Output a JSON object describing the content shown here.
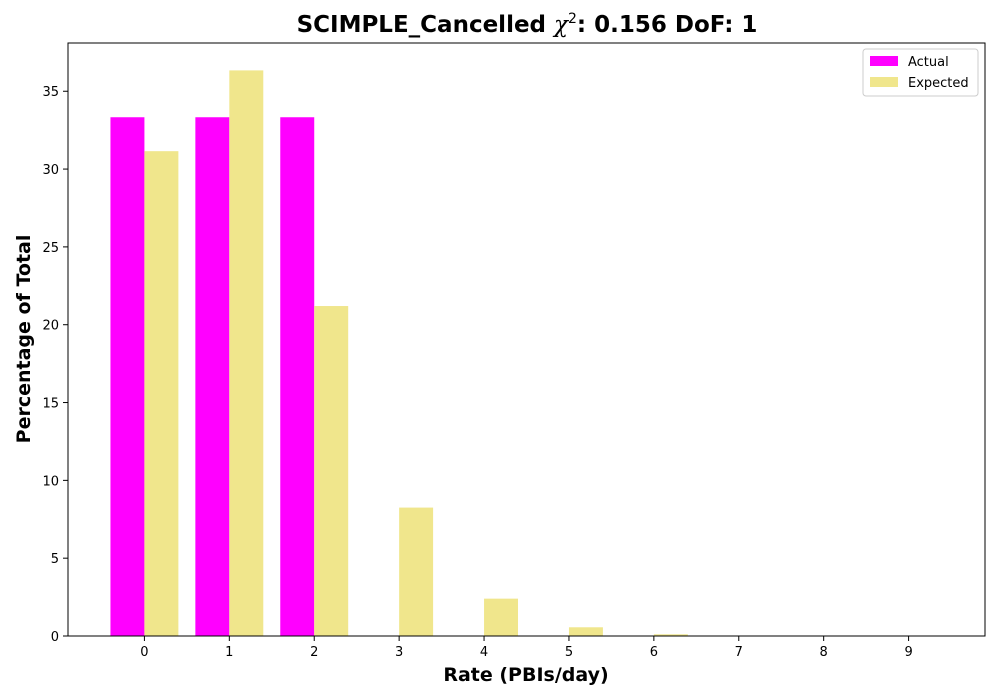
{
  "chart_data": {
    "type": "bar",
    "title_prefix": "SCIMPLE_Cancelled ",
    "title_chi": "χ",
    "title_sup": "2",
    "title_suffix": ": 0.156 DoF: 1",
    "xlabel": "Rate (PBIs/day)",
    "ylabel": "Percentage of Total",
    "categories": [
      "0",
      "1",
      "2",
      "3",
      "4",
      "5",
      "6",
      "7",
      "8",
      "9"
    ],
    "x": [
      0,
      1,
      2,
      3,
      4,
      5,
      6,
      7,
      8,
      9
    ],
    "xlim": [
      -0.9,
      9.9
    ],
    "ylim": [
      0,
      38.1
    ],
    "yticks": [
      0,
      5,
      10,
      15,
      20,
      25,
      30,
      35
    ],
    "ytick_labels": [
      "0",
      "5",
      "10",
      "15",
      "20",
      "25",
      "30",
      "35"
    ],
    "series": [
      {
        "name": "Actual",
        "color": "#ff00ff",
        "values": [
          33.33,
          33.33,
          33.33,
          0,
          0,
          0,
          0,
          0,
          0,
          0
        ]
      },
      {
        "name": "Expected",
        "color": "#f0e68c",
        "values": [
          31.15,
          36.34,
          21.2,
          8.25,
          2.4,
          0.56,
          0.11,
          0.02,
          0,
          0
        ]
      }
    ],
    "legend_position": "top-right",
    "grid": false
  }
}
